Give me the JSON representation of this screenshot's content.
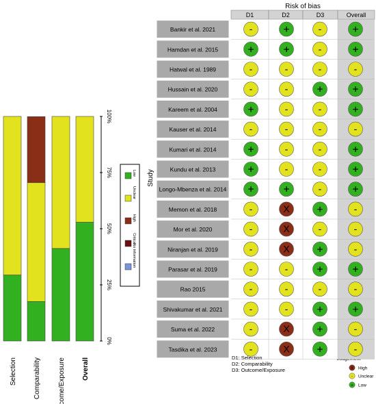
{
  "left_chart": {
    "axis_ticks": [
      "0%",
      "25%",
      "50%",
      "75%",
      "100%"
    ],
    "legend": [
      {
        "label": "Low",
        "color": "#33b020"
      },
      {
        "label": "Unclear",
        "color": "#e2e21e"
      },
      {
        "label": "High",
        "color": "#8a2e18"
      },
      {
        "label": "Critical",
        "color": "#6b1010"
      },
      {
        "label": "No information",
        "color": "#7a94d8"
      }
    ]
  },
  "right_chart": {
    "header": "Risk of bias",
    "columns": [
      "D1",
      "D2",
      "D3",
      "Overall"
    ],
    "y_axis_label": "Study",
    "footnotes": [
      "D1: Selection",
      "D2: Comparability",
      "D3: Outcome/Exposure"
    ],
    "judgement_title": "Judgement",
    "judgement_legend": [
      {
        "label": "High",
        "symbol": "X",
        "color": "#8a2e18"
      },
      {
        "label": "Unclear",
        "symbol": "-",
        "color": "#e2e21e"
      },
      {
        "label": "Low",
        "symbol": "+",
        "color": "#33b020"
      }
    ]
  },
  "chart_data": [
    {
      "type": "bar",
      "orientation": "vertical-stacked-percent",
      "categories": [
        "Selection",
        "Comparability",
        "Outcome/Exposure",
        "Overall"
      ],
      "ylim": [
        0,
        100
      ],
      "series": [
        {
          "name": "Low",
          "color": "#33b020",
          "values": [
            29.4,
            17.6,
            41.2,
            52.9
          ]
        },
        {
          "name": "Unclear",
          "color": "#e2e21e",
          "values": [
            70.6,
            52.9,
            58.8,
            47.1
          ]
        },
        {
          "name": "High",
          "color": "#8a2e18",
          "values": [
            0,
            29.4,
            0,
            0
          ]
        },
        {
          "name": "Critical",
          "color": "#6b1010",
          "values": [
            0,
            0,
            0,
            0
          ]
        },
        {
          "name": "No information",
          "color": "#7a94d8",
          "values": [
            0,
            0,
            0,
            0
          ]
        }
      ]
    },
    {
      "type": "table",
      "title": "Risk of bias",
      "columns": [
        "D1",
        "D2",
        "D3",
        "Overall"
      ],
      "rows": [
        {
          "study": "Bankir et al. 2021",
          "judgements": [
            "-",
            "+",
            "-",
            "+"
          ]
        },
        {
          "study": "Hamdan et al. 2015",
          "judgements": [
            "+",
            "+",
            "-",
            "+"
          ]
        },
        {
          "study": "Hatwal et al. 1989",
          "judgements": [
            "-",
            "-",
            "-",
            "-"
          ]
        },
        {
          "study": "Hussain et al. 2020",
          "judgements": [
            "-",
            "-",
            "+",
            "+"
          ]
        },
        {
          "study": "Kareem et al. 2004",
          "judgements": [
            "+",
            "-",
            "-",
            "+"
          ]
        },
        {
          "study": "Kauser et al. 2014",
          "judgements": [
            "-",
            "-",
            "-",
            "-"
          ]
        },
        {
          "study": "Kumari et al. 2014",
          "judgements": [
            "+",
            "-",
            "-",
            "+"
          ]
        },
        {
          "study": "Kundu et al. 2013",
          "judgements": [
            "+",
            "-",
            "-",
            "+"
          ]
        },
        {
          "study": "Longo-Mbenza et al. 2014",
          "judgements": [
            "+",
            "+",
            "-",
            "+"
          ]
        },
        {
          "study": "Memon et al. 2018",
          "judgements": [
            "-",
            "X",
            "+",
            "-"
          ]
        },
        {
          "study": "Mor et al. 2020",
          "judgements": [
            "-",
            "X",
            "-",
            "-"
          ]
        },
        {
          "study": "Niranjan et al. 2019",
          "judgements": [
            "-",
            "X",
            "+",
            "-"
          ]
        },
        {
          "study": "Parasar et al. 2019",
          "judgements": [
            "-",
            "-",
            "+",
            "+"
          ]
        },
        {
          "study": "Rao 2015",
          "judgements": [
            "-",
            "-",
            "-",
            "-"
          ]
        },
        {
          "study": "Shivakumar et al. 2021",
          "judgements": [
            "-",
            "-",
            "+",
            "+"
          ]
        },
        {
          "study": "Suma et al. 2022",
          "judgements": [
            "-",
            "X",
            "+",
            "-"
          ]
        },
        {
          "study": "Tasdika et al. 2023",
          "judgements": [
            "-",
            "X",
            "+",
            "-"
          ]
        }
      ]
    }
  ]
}
